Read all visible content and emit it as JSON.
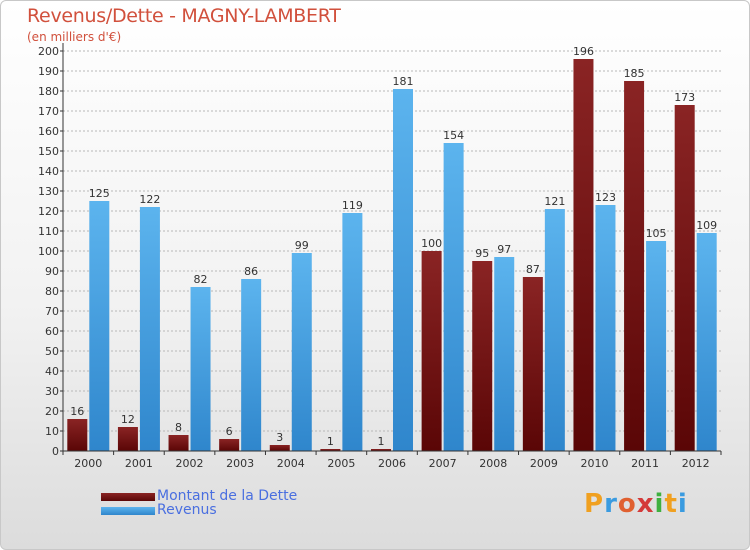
{
  "header": {
    "title": "Revenus/Dette - MAGNY-LAMBERT",
    "subtitle": "(en milliers d'€)"
  },
  "legend": [
    {
      "label": "Montant de la Dette",
      "color": "#6e0e0e"
    },
    {
      "label": "Revenus",
      "color": "#4aa2e6"
    }
  ],
  "logo": {
    "text": "Proxiti"
  },
  "colors": {
    "dette": "#7a1515",
    "revenus": "#55aee9",
    "axis": "#333333",
    "grid": "#bbbbbb"
  },
  "chart_data": {
    "type": "bar",
    "categories": [
      "2000",
      "2001",
      "2002",
      "2003",
      "2004",
      "2005",
      "2006",
      "2007",
      "2008",
      "2009",
      "2010",
      "2011",
      "2012"
    ],
    "series": [
      {
        "name": "Montant de la Dette",
        "values": [
          16,
          12,
          8,
          6,
          3,
          1,
          1,
          100,
          95,
          87,
          196,
          185,
          173
        ]
      },
      {
        "name": "Revenus",
        "values": [
          125,
          122,
          82,
          86,
          99,
          119,
          181,
          154,
          97,
          121,
          123,
          105,
          109
        ]
      }
    ],
    "ylim": [
      0,
      200
    ],
    "yticks": [
      0,
      10,
      20,
      30,
      40,
      50,
      60,
      70,
      80,
      90,
      100,
      110,
      120,
      130,
      140,
      150,
      160,
      170,
      180,
      190,
      200
    ],
    "grid": true,
    "legend_position": "bottom-left"
  }
}
